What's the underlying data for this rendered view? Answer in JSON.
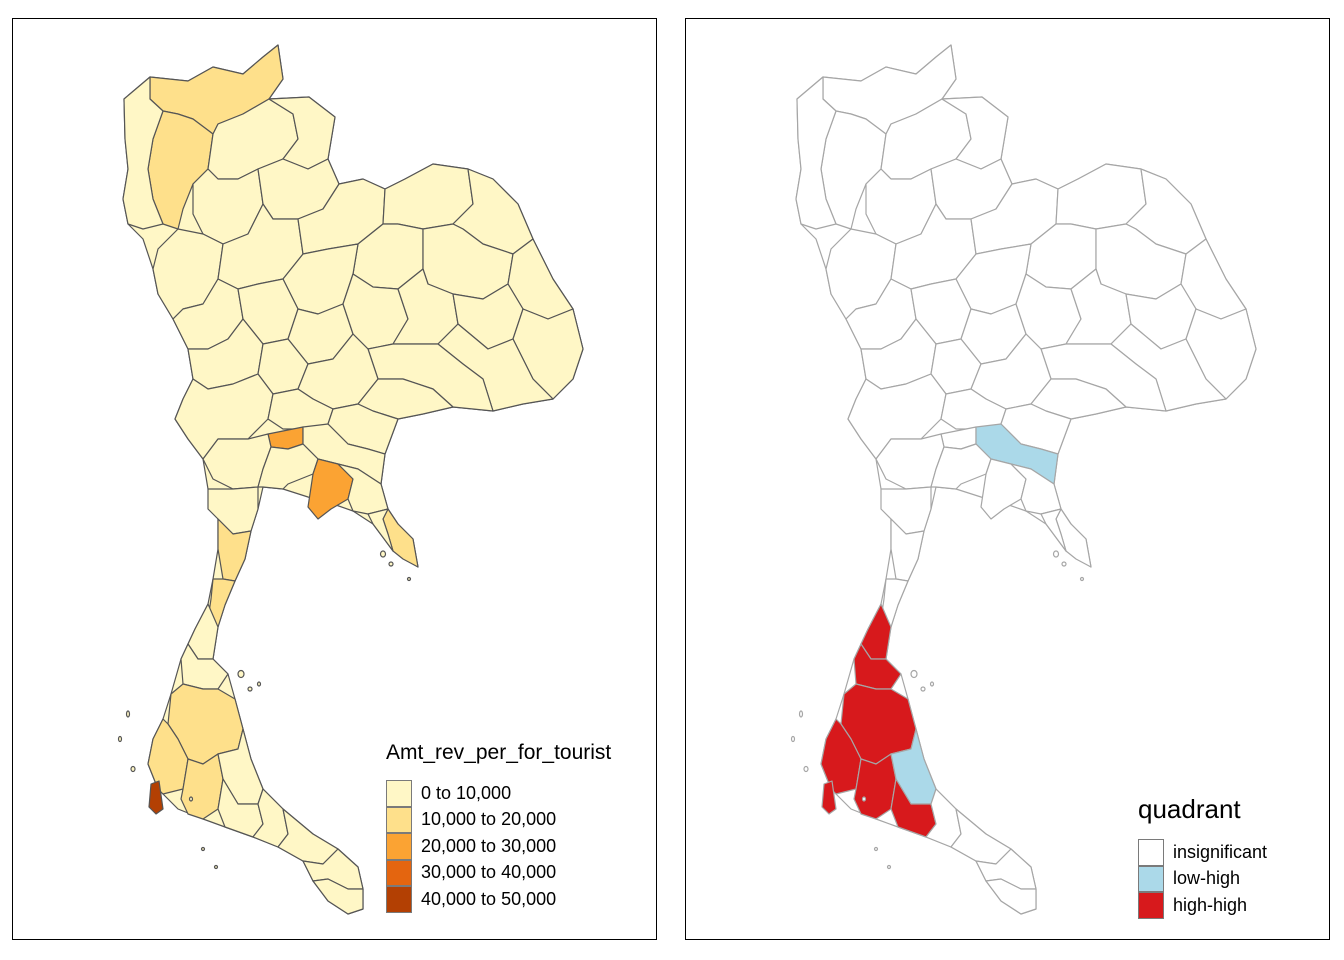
{
  "left_map": {
    "legend": {
      "title": "Amt_rev_per_for_tourist",
      "items": [
        {
          "label": "0 to 10,000",
          "color": "#FFF7C6"
        },
        {
          "label": "10,000 to 20,000",
          "color": "#FEE08B"
        },
        {
          "label": "20,000 to 30,000",
          "color": "#FBA333"
        },
        {
          "label": "30,000 to 40,000",
          "color": "#E4650F"
        },
        {
          "label": "40,000 to 50,000",
          "color": "#B34003"
        }
      ]
    },
    "border_color": "#555555"
  },
  "right_map": {
    "legend": {
      "title": "quadrant",
      "items": [
        {
          "label": "insignificant",
          "color": "#FFFFFF"
        },
        {
          "label": "low-high",
          "color": "#ABD9E9"
        },
        {
          "label": "high-high",
          "color": "#D7191C"
        }
      ]
    },
    "border_color": "#A6A6A6"
  }
}
